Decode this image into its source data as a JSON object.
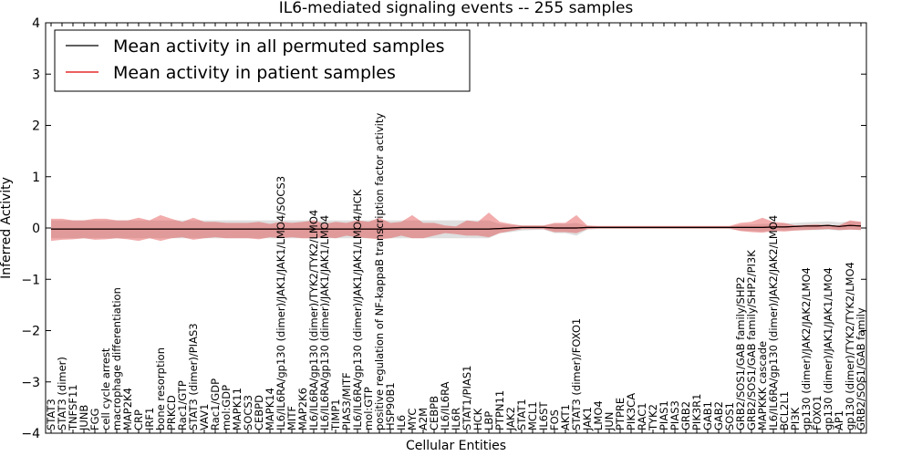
{
  "chart_data": {
    "type": "line",
    "title": "IL6-mediated signaling events -- 255 samples",
    "xlabel": "Cellular Entities",
    "ylabel": "Inferred Activity",
    "ylim": [
      -4,
      4
    ],
    "yticks": [
      -4,
      -3,
      -2,
      -1,
      0,
      1,
      2,
      3,
      4
    ],
    "grid": false,
    "legend_position": "top-left",
    "categories": [
      "STAT3",
      "STAT3 (dimer)",
      "TNFSF11",
      "JUNB",
      "FGG",
      "cell cycle arrest",
      "macrophage differentiation",
      "MAP2K4",
      "CRP",
      "IRF1",
      "bone resorption",
      "PRKCD",
      "Rac1/GTP",
      "STAT3 (dimer)/PIAS3",
      "VAV1",
      "Rac1/GDP",
      "mol:GDP",
      "MAPK11",
      "SOCS3",
      "CEBPD",
      "MAPK14",
      "IL6/IL6RA/gp130 (dimer)/JAK1/JAK1/LMO4/SOCS3",
      "MITF",
      "MAP2K6",
      "IL6/IL6RA/gp130 (dimer)/TYK2/TYK2/LMO4",
      "IL6/IL6RA/gp130 (dimer)/JAK1/JAK1/LMO4",
      "TIMP1",
      "PIAS3/MITF",
      "IL6/IL6RA/gp130 (dimer)/JAK1/JAK1/LMO4/HCK",
      "mol:GTP",
      "positive regulation of NF-kappaB transcription factor activity",
      "HSP90B1",
      "IL6",
      "MYC",
      "A2M",
      "CEBPB",
      "IL6/IL6RA",
      "IL6R",
      "STAT1/PIAS1",
      "HCK",
      "LBP",
      "PTPN11",
      "JAK2",
      "STAT1",
      "MCL1",
      "IL6ST",
      "FOS",
      "AKT1",
      "STAT3 (dimer)/FOXO1",
      "JAK1",
      "LMO4",
      "JUN",
      "PTPRE",
      "PIK3CA",
      "RAC1",
      "TYK2",
      "PIAS1",
      "PIAS3",
      "GRB2",
      "PIK3R1",
      "GAB1",
      "GAB2",
      "SOS1",
      "GRB2/SOS1/GAB family/SHP2",
      "GRB2/SOS1/GAB family/SHP2/PI3K",
      "MAPKKK cascade",
      "IL6/IL6RA/gp130 (dimer)/JAK2/JAK2/LMO4",
      "BCL2L1",
      "PI3K",
      "gp130 (dimer)/JAK2/JAK2/LMO4",
      "FOXO1",
      "gp130 (dimer)/JAK1/JAK1/LMO4",
      "AP1",
      "gp130 (dimer)/TYK2/TYK2/LMO4",
      "GRB2/SOS1/GAB family"
    ],
    "series": [
      {
        "name": "Mean activity in all permuted samples",
        "color": "#000000",
        "band_color": "#b8b8b8",
        "values": [
          -0.02,
          -0.02,
          -0.02,
          -0.02,
          -0.02,
          -0.02,
          -0.02,
          -0.02,
          -0.02,
          -0.02,
          -0.02,
          -0.02,
          -0.02,
          -0.02,
          -0.02,
          -0.02,
          -0.02,
          -0.02,
          -0.02,
          -0.02,
          -0.02,
          -0.02,
          -0.02,
          -0.02,
          -0.02,
          -0.02,
          -0.02,
          -0.02,
          -0.02,
          -0.02,
          -0.02,
          -0.02,
          -0.02,
          -0.02,
          -0.02,
          -0.02,
          -0.02,
          -0.02,
          -0.02,
          -0.02,
          -0.02,
          -0.01,
          0.0,
          0.01,
          0.01,
          0.01,
          0.0,
          0.0,
          0.0,
          0.01,
          0.01,
          0.01,
          0.01,
          0.01,
          0.01,
          0.01,
          0.01,
          0.01,
          0.01,
          0.01,
          0.01,
          0.01,
          0.01,
          0.01,
          0.01,
          0.01,
          0.02,
          0.02,
          0.03,
          0.04,
          0.04,
          0.05,
          0.03,
          0.05,
          0.04
        ],
        "lower": [
          -0.2,
          -0.2,
          -0.2,
          -0.2,
          -0.2,
          -0.2,
          -0.2,
          -0.2,
          -0.2,
          -0.2,
          -0.2,
          -0.2,
          -0.2,
          -0.2,
          -0.2,
          -0.2,
          -0.2,
          -0.2,
          -0.2,
          -0.2,
          -0.2,
          -0.2,
          -0.2,
          -0.2,
          -0.2,
          -0.2,
          -0.2,
          -0.2,
          -0.2,
          -0.2,
          -0.2,
          -0.2,
          -0.2,
          -0.2,
          -0.2,
          -0.2,
          -0.2,
          -0.2,
          -0.2,
          -0.2,
          -0.2,
          -0.1,
          -0.08,
          -0.05,
          -0.04,
          -0.03,
          -0.1,
          -0.1,
          -0.15,
          -0.03,
          -0.02,
          -0.02,
          -0.02,
          -0.02,
          -0.02,
          -0.02,
          -0.02,
          -0.02,
          -0.02,
          -0.02,
          -0.02,
          -0.02,
          -0.02,
          -0.05,
          -0.06,
          -0.07,
          -0.05,
          -0.05,
          -0.05,
          -0.04,
          -0.04,
          -0.03,
          -0.05,
          -0.03,
          -0.04
        ],
        "upper": [
          0.15,
          0.15,
          0.15,
          0.15,
          0.15,
          0.15,
          0.15,
          0.15,
          0.15,
          0.15,
          0.15,
          0.15,
          0.15,
          0.15,
          0.15,
          0.15,
          0.15,
          0.15,
          0.15,
          0.15,
          0.15,
          0.15,
          0.15,
          0.15,
          0.15,
          0.15,
          0.15,
          0.15,
          0.15,
          0.15,
          0.15,
          0.15,
          0.15,
          0.15,
          0.15,
          0.15,
          0.15,
          0.15,
          0.15,
          0.15,
          0.15,
          0.08,
          0.06,
          0.05,
          0.05,
          0.05,
          0.08,
          0.08,
          0.1,
          0.04,
          0.03,
          0.03,
          0.03,
          0.03,
          0.03,
          0.03,
          0.03,
          0.03,
          0.03,
          0.03,
          0.03,
          0.03,
          0.03,
          0.06,
          0.07,
          0.08,
          0.08,
          0.09,
          0.1,
          0.11,
          0.12,
          0.13,
          0.11,
          0.13,
          0.12
        ]
      },
      {
        "name": "Mean activity in patient samples",
        "color": "#e00000",
        "band_color": "#e24646",
        "values": [
          -0.02,
          -0.02,
          -0.02,
          -0.02,
          -0.02,
          -0.02,
          -0.02,
          -0.02,
          -0.02,
          -0.02,
          -0.02,
          -0.02,
          -0.02,
          -0.02,
          -0.02,
          -0.02,
          -0.02,
          -0.02,
          -0.02,
          -0.02,
          -0.02,
          -0.02,
          -0.02,
          -0.02,
          -0.02,
          -0.02,
          -0.02,
          -0.02,
          -0.02,
          -0.02,
          -0.02,
          -0.02,
          -0.02,
          -0.02,
          -0.02,
          -0.02,
          -0.02,
          -0.02,
          -0.02,
          -0.02,
          -0.02,
          -0.01,
          0.0,
          0.01,
          0.01,
          0.01,
          0.0,
          0.0,
          0.0,
          0.01,
          0.01,
          0.01,
          0.01,
          0.01,
          0.01,
          0.01,
          0.01,
          0.01,
          0.01,
          0.01,
          0.01,
          0.01,
          0.01,
          0.01,
          0.01,
          0.01,
          0.02,
          0.02,
          0.03,
          0.04,
          0.04,
          0.05,
          0.03,
          0.05,
          0.04
        ],
        "lower": [
          -0.25,
          -0.23,
          -0.22,
          -0.2,
          -0.23,
          -0.22,
          -0.2,
          -0.22,
          -0.25,
          -0.2,
          -0.25,
          -0.2,
          -0.18,
          -0.23,
          -0.2,
          -0.18,
          -0.2,
          -0.2,
          -0.2,
          -0.22,
          -0.18,
          -0.2,
          -0.18,
          -0.2,
          -0.2,
          -0.18,
          -0.2,
          -0.15,
          -0.18,
          -0.2,
          -0.22,
          -0.2,
          -0.15,
          -0.2,
          -0.2,
          -0.15,
          -0.1,
          -0.12,
          -0.15,
          -0.15,
          -0.18,
          -0.1,
          -0.06,
          -0.02,
          -0.02,
          -0.02,
          -0.08,
          -0.08,
          -0.1,
          -0.02,
          -0.01,
          -0.01,
          -0.01,
          -0.01,
          -0.01,
          -0.01,
          -0.01,
          -0.01,
          -0.01,
          -0.01,
          -0.01,
          -0.01,
          -0.01,
          -0.06,
          -0.08,
          -0.09,
          -0.06,
          -0.07,
          -0.05,
          -0.04,
          -0.03,
          -0.02,
          -0.04,
          -0.03,
          -0.04
        ],
        "upper": [
          0.18,
          0.18,
          0.15,
          0.15,
          0.18,
          0.18,
          0.15,
          0.15,
          0.2,
          0.15,
          0.25,
          0.18,
          0.12,
          0.2,
          0.12,
          0.12,
          0.1,
          0.1,
          0.1,
          0.12,
          0.08,
          0.12,
          0.1,
          0.12,
          0.15,
          0.08,
          0.12,
          0.1,
          0.15,
          0.12,
          0.2,
          0.1,
          0.12,
          0.25,
          0.1,
          0.1,
          0.05,
          0.03,
          0.15,
          0.12,
          0.3,
          0.12,
          0.08,
          0.05,
          0.05,
          0.05,
          0.1,
          0.1,
          0.25,
          0.05,
          0.04,
          0.04,
          0.04,
          0.04,
          0.04,
          0.04,
          0.04,
          0.04,
          0.04,
          0.04,
          0.04,
          0.04,
          0.04,
          0.1,
          0.12,
          0.2,
          0.12,
          0.1,
          0.05,
          0.06,
          0.07,
          0.05,
          0.05,
          0.15,
          0.12
        ]
      }
    ]
  }
}
